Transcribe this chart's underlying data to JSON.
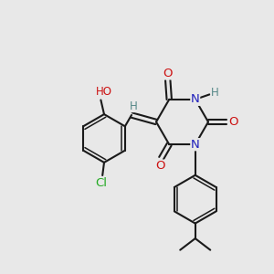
{
  "bg_color": "#e8e8e8",
  "bond_color": "#1a1a1a",
  "N_color": "#2020bb",
  "O_color": "#cc1111",
  "Cl_color": "#22aa22",
  "H_color": "#558888",
  "font_size": 8.5,
  "figsize": [
    3.0,
    3.0
  ],
  "dpi": 100,
  "xlim": [
    0,
    10
  ],
  "ylim": [
    0,
    10
  ]
}
